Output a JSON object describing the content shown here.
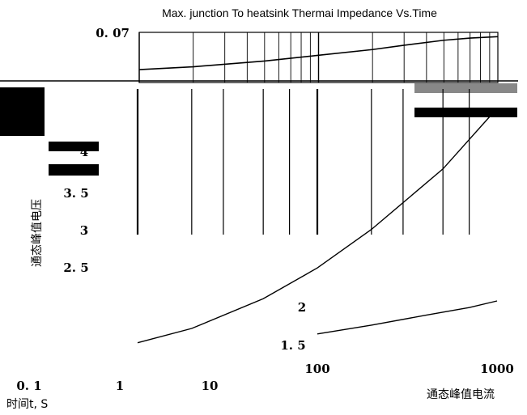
{
  "chart_data": [
    {
      "type": "line",
      "title": "Max. junction To heatsink Thermai Impedance Vs.Time",
      "xlabel": "时间t, S",
      "ylabel": "",
      "x_scale": "log",
      "xlim": [
        0.1,
        10
      ],
      "ylim": [
        0,
        0.07
      ],
      "x_tick_labels": [
        "0. 1",
        "1",
        "10"
      ],
      "y_tick_labels": [
        "0. 07"
      ],
      "grid": true,
      "series": [
        {
          "x": [
            0.1,
            0.2,
            0.5,
            1,
            2,
            3,
            5,
            7,
            10
          ],
          "y": [
            0.018,
            0.022,
            0.03,
            0.038,
            0.046,
            0.052,
            0.059,
            0.062,
            0.064
          ]
        }
      ]
    },
    {
      "type": "line",
      "title": "",
      "xlabel": "通态峰值电流",
      "ylabel": "通态峰值电压",
      "x_scale": "log",
      "xlim": [
        10,
        1000
      ],
      "ylim": [
        1.5,
        4
      ],
      "x_tick_labels": [
        "10",
        "100",
        "1000"
      ],
      "y_tick_labels": [
        "4",
        "3. 5",
        "3",
        "2. 5",
        "2",
        "1. 5"
      ],
      "grid": true,
      "series": [
        {
          "x": [
            10,
            20,
            50,
            100,
            200,
            500,
            1000
          ],
          "y": [
            1.62,
            1.75,
            2.02,
            2.3,
            2.65,
            3.2,
            3.75
          ]
        },
        {
          "x": [
            100,
            200,
            400,
            700,
            1000
          ],
          "y": [
            1.7,
            1.78,
            1.87,
            1.94,
            2.0
          ]
        }
      ]
    }
  ]
}
